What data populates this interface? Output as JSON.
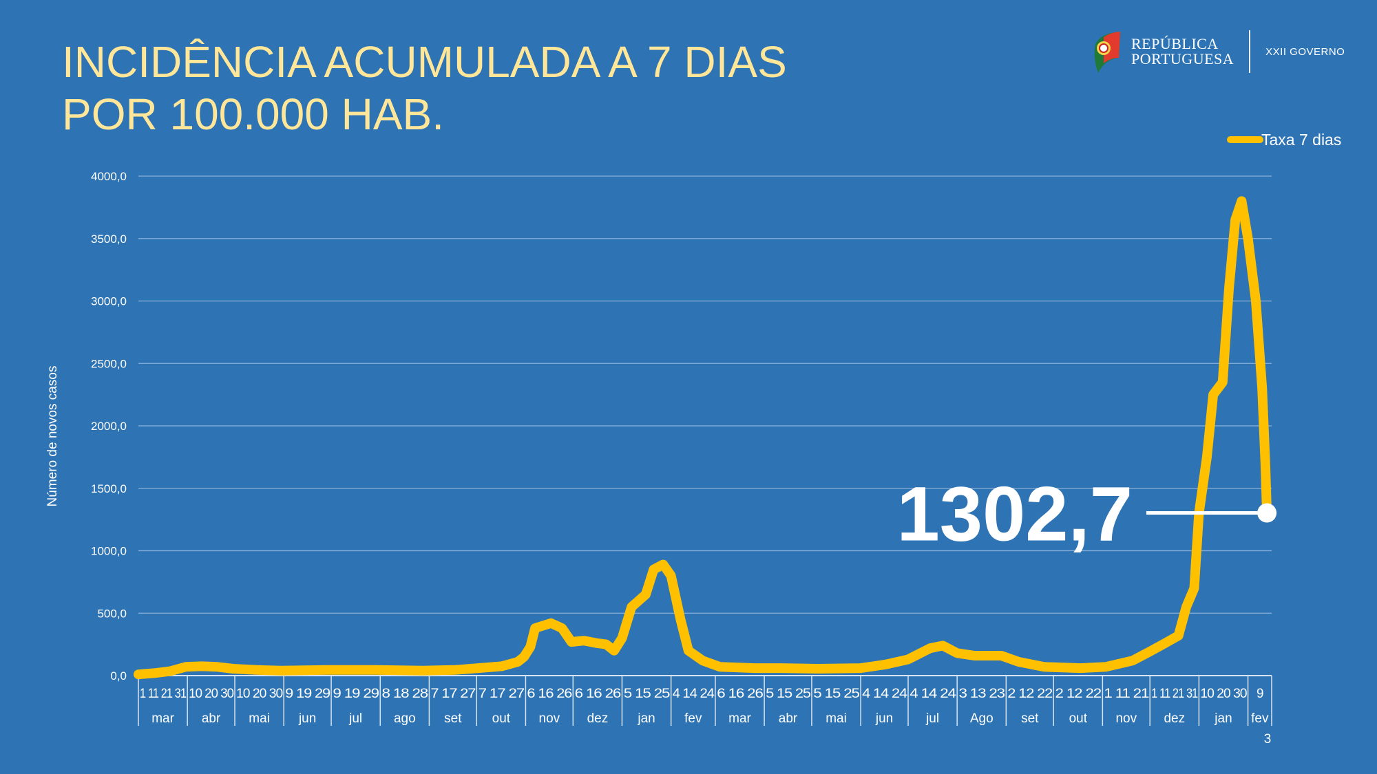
{
  "header": {
    "title_line1": "INCIDÊNCIA ACUMULADA A 7 DIAS",
    "title_line2": "POR 100.000 HAB.",
    "logo_line1": "REPÚBLICA",
    "logo_line2": "PORTUGUESA",
    "government": "XXII GOVERNO"
  },
  "page_number": "3",
  "colors": {
    "background": "#2E74B5",
    "title": "#FFE699",
    "series": "#FFC000",
    "grid": "#8DB0DA",
    "text": "#FFFFFF"
  },
  "chart_data": {
    "type": "line",
    "title": "INCIDÊNCIA ACUMULADA A 7 DIAS POR 100.000 HAB.",
    "xlabel": "",
    "ylabel": "Número de novos casos",
    "x_unit": "days since 2020-03-01",
    "xlim": [
      0,
      717
    ],
    "ylim": [
      0,
      4000
    ],
    "yticks": [
      0,
      500,
      1000,
      1500,
      2000,
      2500,
      3000,
      3500,
      4000
    ],
    "ytick_labels": [
      "0,0",
      "500,0",
      "1000,0",
      "1500,0",
      "2000,0",
      "2500,0",
      "3000,0",
      "3500,0",
      "4000,0"
    ],
    "grid": true,
    "legend": {
      "position": "top-right",
      "entries": [
        "Taxa 7 dias"
      ]
    },
    "months": [
      {
        "name": "mar",
        "days": 31,
        "ticks": "1 11 21 31"
      },
      {
        "name": "abr",
        "days": 30,
        "ticks": "10 20 30"
      },
      {
        "name": "mai",
        "days": 31,
        "ticks": "10 20 30"
      },
      {
        "name": "jun",
        "days": 30,
        "ticks": "9 19 29"
      },
      {
        "name": "jul",
        "days": 31,
        "ticks": "9 19 29"
      },
      {
        "name": "ago",
        "days": 31,
        "ticks": "8 18 28"
      },
      {
        "name": "set",
        "days": 30,
        "ticks": "7 17 27"
      },
      {
        "name": "out",
        "days": 31,
        "ticks": "7 17 27"
      },
      {
        "name": "nov",
        "days": 30,
        "ticks": "6 16 26"
      },
      {
        "name": "dez",
        "days": 31,
        "ticks": "6 16 26"
      },
      {
        "name": "jan",
        "days": 31,
        "ticks": "5 15 25"
      },
      {
        "name": "fev",
        "days": 28,
        "ticks": "4 14 24"
      },
      {
        "name": "mar",
        "days": 31,
        "ticks": "6 16 26"
      },
      {
        "name": "abr",
        "days": 30,
        "ticks": "5 15 25"
      },
      {
        "name": "mai",
        "days": 31,
        "ticks": "5 15 25"
      },
      {
        "name": "jun",
        "days": 30,
        "ticks": "4 14 24"
      },
      {
        "name": "jul",
        "days": 31,
        "ticks": "4 14 24"
      },
      {
        "name": "Ago",
        "days": 31,
        "ticks": "3 13 23"
      },
      {
        "name": "set",
        "days": 30,
        "ticks": "2 12 22"
      },
      {
        "name": "out",
        "days": 31,
        "ticks": "2 12 22"
      },
      {
        "name": "nov",
        "days": 30,
        "ticks": "1 11 21"
      },
      {
        "name": "dez",
        "days": 31,
        "ticks": "1 11 21 31"
      },
      {
        "name": "jan",
        "days": 31,
        "ticks": "10 20 30"
      },
      {
        "name": "fev",
        "days": 15,
        "ticks": "9"
      }
    ],
    "series": [
      {
        "name": "Taxa 7 dias",
        "points": [
          [
            0,
            10
          ],
          [
            10,
            20
          ],
          [
            20,
            35
          ],
          [
            30,
            70
          ],
          [
            40,
            75
          ],
          [
            50,
            70
          ],
          [
            60,
            55
          ],
          [
            75,
            45
          ],
          [
            90,
            40
          ],
          [
            120,
            45
          ],
          [
            150,
            45
          ],
          [
            180,
            40
          ],
          [
            200,
            45
          ],
          [
            215,
            60
          ],
          [
            230,
            75
          ],
          [
            240,
            110
          ],
          [
            244,
            150
          ],
          [
            248,
            230
          ],
          [
            251,
            380
          ],
          [
            261,
            420
          ],
          [
            268,
            380
          ],
          [
            274,
            270
          ],
          [
            282,
            280
          ],
          [
            290,
            260
          ],
          [
            296,
            250
          ],
          [
            301,
            200
          ],
          [
            306,
            300
          ],
          [
            312,
            550
          ],
          [
            321,
            650
          ],
          [
            326,
            850
          ],
          [
            332,
            890
          ],
          [
            337,
            800
          ],
          [
            343,
            450
          ],
          [
            348,
            200
          ],
          [
            357,
            120
          ],
          [
            368,
            70
          ],
          [
            390,
            60
          ],
          [
            407,
            60
          ],
          [
            430,
            55
          ],
          [
            457,
            60
          ],
          [
            473,
            90
          ],
          [
            487,
            130
          ],
          [
            501,
            220
          ],
          [
            509,
            240
          ],
          [
            518,
            180
          ],
          [
            529,
            160
          ],
          [
            546,
            160
          ],
          [
            557,
            110
          ],
          [
            573,
            70
          ],
          [
            596,
            60
          ],
          [
            612,
            70
          ],
          [
            629,
            120
          ],
          [
            641,
            200
          ],
          [
            651,
            270
          ],
          [
            658,
            320
          ],
          [
            663,
            550
          ],
          [
            668,
            700
          ],
          [
            671,
            1300
          ],
          [
            676,
            1750
          ],
          [
            680,
            2250
          ],
          [
            686,
            2350
          ],
          [
            690,
            3100
          ],
          [
            694,
            3650
          ],
          [
            698,
            3800
          ],
          [
            702,
            3500
          ],
          [
            707,
            3000
          ],
          [
            711,
            2300
          ],
          [
            713,
            1700
          ],
          [
            714,
            1302.7
          ]
        ]
      }
    ],
    "annotation": {
      "label": "1302,7",
      "value": 1302.7,
      "day": 714
    }
  }
}
